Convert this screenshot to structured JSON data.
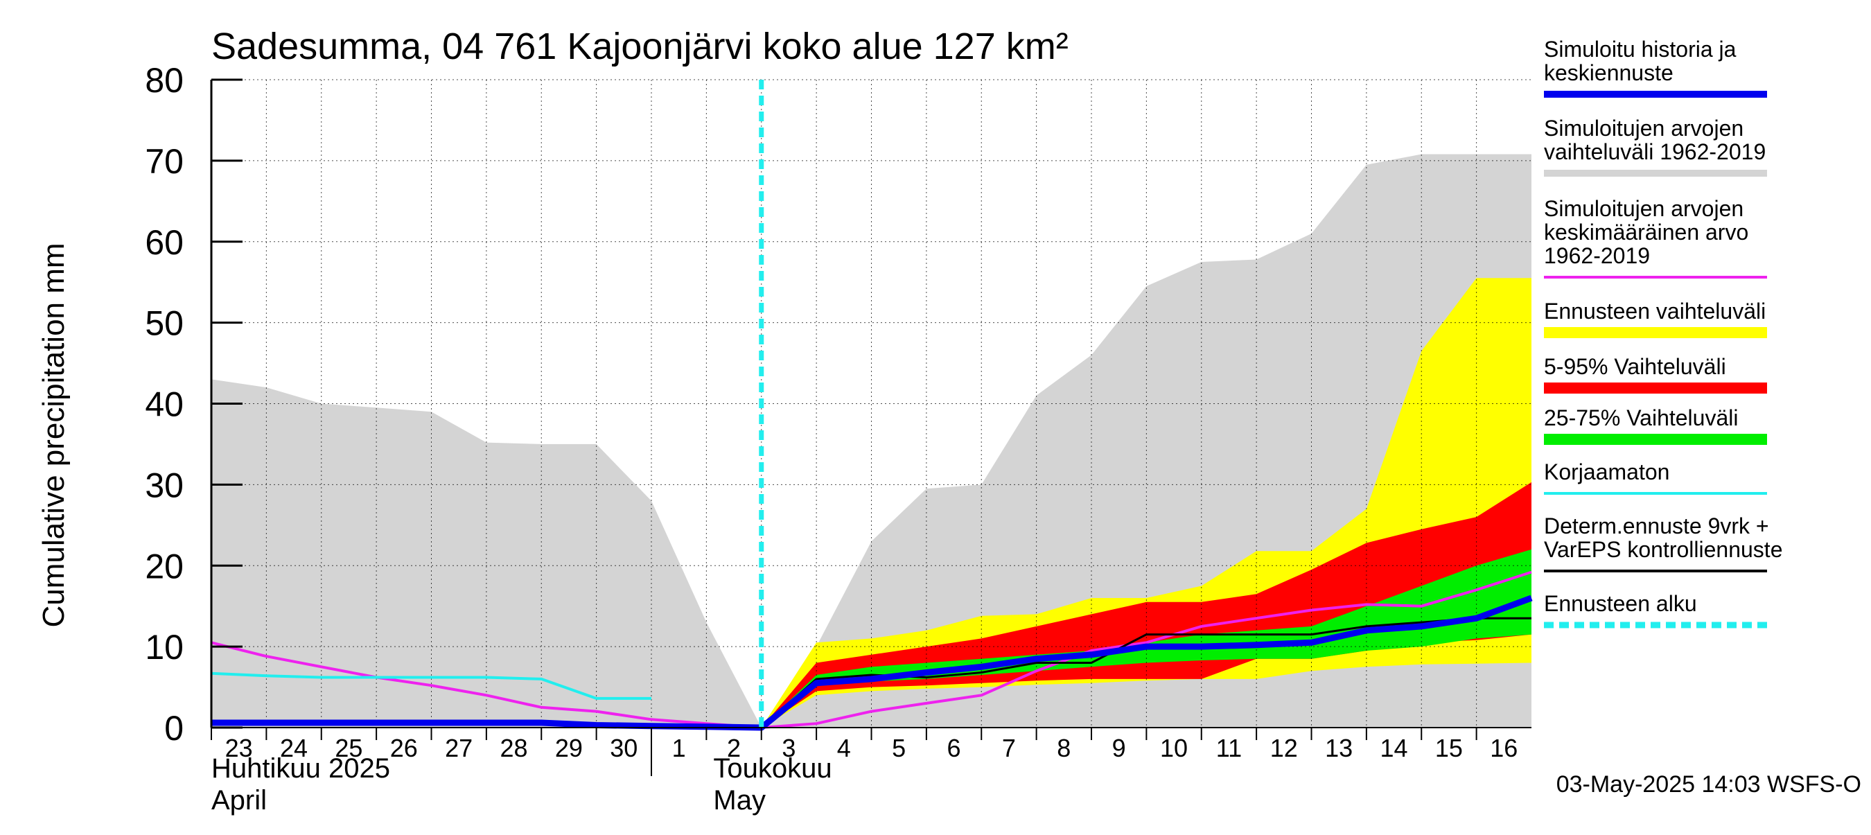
{
  "chart_data": {
    "type": "area",
    "title": "Sadesumma, 04 761 Kajoonjärvi koko alue 127 km²",
    "ylabel": "Cumulative precipitation   mm",
    "xlabel": "",
    "ylim": [
      0,
      80
    ],
    "yticks": [
      0,
      10,
      20,
      30,
      40,
      50,
      60,
      70,
      80
    ],
    "grid": true,
    "legend_position": "right",
    "x_tick_labels": [
      "23",
      "24",
      "25",
      "26",
      "27",
      "28",
      "29",
      "30",
      "1",
      "2",
      "3",
      "4",
      "5",
      "6",
      "7",
      "8",
      "9",
      "10",
      "11",
      "12",
      "13",
      "14",
      "15",
      "16"
    ],
    "month_labels": [
      {
        "fi": "Huhtikuu  2025",
        "en": "April"
      },
      {
        "fi": "Toukokuu",
        "en": "May"
      }
    ],
    "forecast_start_day": 10,
    "timestamp": "03-May-2025 14:03 WSFS-O",
    "legend": [
      {
        "label": "Simuloitu historia ja\nkeskiennuste",
        "color": "#0000ee",
        "style": "thick"
      },
      {
        "label": "Simuloitujen arvojen\nvaihteluväli 1962-2019",
        "color": "#d4d4d4",
        "style": "thick"
      },
      {
        "label": "Simuloitujen arvojen\nkeskimääräinen arvo\n   1962-2019",
        "color": "#ee22ee",
        "style": "line"
      },
      {
        "label": "Ennusteen vaihteluväli",
        "color": "#ffff00",
        "style": "band"
      },
      {
        "label": "5-95% Vaihteluväli",
        "color": "#ff0000",
        "style": "band"
      },
      {
        "label": "25-75% Vaihteluväli",
        "color": "#00ee00",
        "style": "band"
      },
      {
        "label": "Korjaamaton",
        "color": "#22eeee",
        "style": "line"
      },
      {
        "label": "Determ.ennuste 9vrk +\nVarEPS kontrolliennuste",
        "color": "#000000",
        "style": "line"
      },
      {
        "label": "Ennusteen alku",
        "color": "#22eeee",
        "style": "dashed"
      }
    ],
    "series": [
      {
        "key": "hist_range",
        "x": [
          0,
          1,
          2,
          3,
          4,
          5,
          6,
          7,
          8,
          9,
          10,
          11,
          12,
          13,
          14,
          15,
          16,
          17,
          18,
          19,
          20,
          21,
          22,
          23,
          24
        ],
        "low": [
          0,
          0,
          0,
          0,
          0,
          0,
          0,
          0,
          0,
          0,
          0,
          0,
          0,
          0,
          0,
          0,
          0,
          0,
          0,
          0,
          0,
          0,
          0,
          0,
          0
        ],
        "high": [
          43,
          42,
          40,
          39.5,
          39,
          35.2,
          35,
          35,
          28,
          13,
          0,
          10,
          23,
          29.5,
          30,
          41,
          46,
          54.5,
          57.5,
          57.8,
          61,
          69.5,
          70.8,
          70.8,
          70.8
        ]
      },
      {
        "key": "forecast_range",
        "x": [
          10,
          11,
          12,
          13,
          14,
          15,
          16,
          17,
          18,
          19,
          20,
          21,
          22,
          23,
          24
        ],
        "low": [
          0,
          4,
          4.5,
          4.8,
          5,
          5.3,
          5.5,
          5.8,
          6,
          6,
          7,
          7.5,
          7.8,
          7.9,
          8
        ],
        "high": [
          0,
          10.5,
          11,
          12,
          13.8,
          14,
          16,
          16,
          17.5,
          21.8,
          21.8,
          27,
          46.5,
          55.5,
          55.5
        ]
      },
      {
        "key": "p5_95",
        "x": [
          10,
          11,
          12,
          13,
          14,
          15,
          16,
          17,
          18,
          19,
          20,
          21,
          22,
          23,
          24
        ],
        "low": [
          0,
          4.5,
          5,
          5.2,
          5.5,
          5.8,
          6,
          6,
          6,
          8.5,
          8.5,
          9.5,
          10.5,
          10.8,
          11.5
        ],
        "high": [
          0,
          8,
          9,
          10,
          11,
          12.5,
          14,
          15.5,
          15.5,
          16.5,
          19.5,
          22.8,
          24.5,
          26,
          30.3
        ]
      },
      {
        "key": "p25_75",
        "x": [
          10,
          11,
          12,
          13,
          14,
          15,
          16,
          17,
          18,
          19,
          20,
          21,
          22,
          23,
          24
        ],
        "low": [
          0,
          5.2,
          5.7,
          6,
          6.5,
          7,
          7.5,
          8,
          8.3,
          8.5,
          8.5,
          9.5,
          10,
          11,
          11.5
        ],
        "high": [
          0,
          6.5,
          7.5,
          8,
          8.5,
          9,
          9.5,
          10.5,
          11.5,
          12,
          12.5,
          15,
          17.5,
          20,
          22
        ]
      },
      {
        "key": "det_forecast",
        "x": [
          10,
          11,
          12,
          13,
          14,
          15,
          16,
          17,
          18,
          19,
          20,
          21,
          22,
          23,
          24
        ],
        "y": [
          0,
          6,
          6.5,
          6.2,
          6.8,
          8,
          8,
          11.5,
          11.5,
          11.5,
          11.5,
          12.5,
          13,
          13.5,
          13.5
        ]
      },
      {
        "key": "mean_forecast",
        "x": [
          0,
          1,
          2,
          3,
          4,
          5,
          6,
          7,
          8,
          9,
          10,
          11,
          12,
          13,
          14,
          15,
          16,
          17,
          18,
          19,
          20,
          21,
          22,
          23,
          24
        ],
        "y": [
          0.6,
          0.6,
          0.6,
          0.6,
          0.6,
          0.6,
          0.6,
          0.3,
          0.2,
          0.1,
          0,
          5.5,
          6,
          6.8,
          7.5,
          8.5,
          9,
          10,
          10,
          10.2,
          10.5,
          12,
          12.5,
          13.5,
          16
        ]
      },
      {
        "key": "clim_mean",
        "x": [
          0,
          1,
          2,
          3,
          4,
          5,
          6,
          7,
          8,
          9,
          10,
          11,
          12,
          13,
          14,
          15,
          16,
          17,
          18,
          19,
          20,
          21,
          22,
          23,
          24
        ],
        "y": [
          10.5,
          8.8,
          7.5,
          6.2,
          5.2,
          4,
          2.5,
          2,
          1,
          0.5,
          0,
          0.5,
          2,
          3,
          4,
          7,
          9.5,
          10.5,
          12.5,
          13.5,
          14.5,
          15.2,
          15,
          17,
          19.2
        ]
      },
      {
        "key": "uncorrected",
        "x": [
          0,
          1,
          2,
          3,
          4,
          5,
          6,
          7,
          8
        ],
        "y": [
          6.7,
          6.4,
          6.2,
          6.2,
          6.2,
          6.2,
          6.0,
          3.6,
          3.6
        ]
      }
    ]
  }
}
